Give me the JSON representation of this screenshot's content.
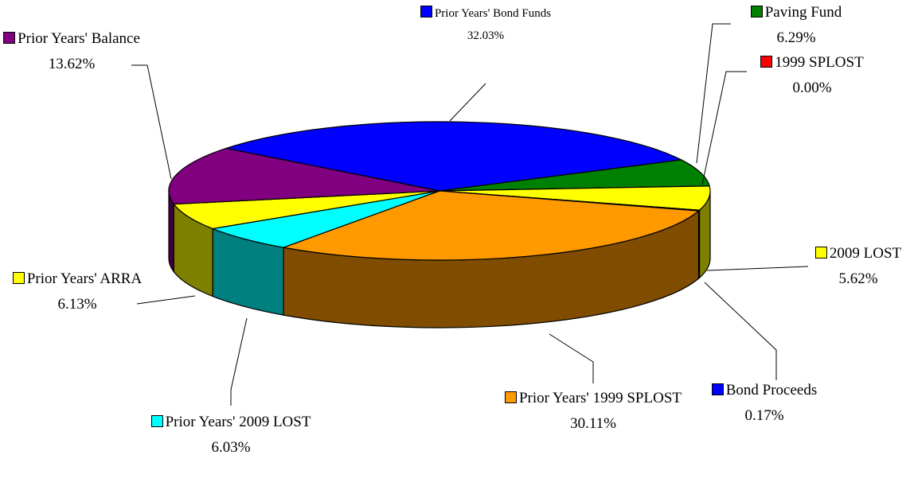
{
  "chart_data": {
    "type": "pie",
    "categories": [
      "Prior Years' Bond Funds",
      "Paving Fund",
      "1999 SPLOST",
      "2009 LOST",
      "Bond Proceeds",
      "Prior Years' 1999 SPLOST",
      "Prior Years' 2009 LOST",
      "Prior Years' ARRA",
      "Prior Years' Balance"
    ],
    "values": [
      32.03,
      6.29,
      0.0,
      5.62,
      0.17,
      30.11,
      6.03,
      6.13,
      13.62
    ],
    "value_labels": [
      "32.03%",
      "6.29%",
      "0.00%",
      "5.62%",
      "0.17%",
      "30.11%",
      "6.03%",
      "6.13%",
      "13.62%"
    ],
    "colors": [
      "#0000ff",
      "#008000",
      "#ff0000",
      "#ffff00",
      "#0000ff",
      "#ff9900",
      "#00ffff",
      "#ffff00",
      "#800080"
    ]
  }
}
